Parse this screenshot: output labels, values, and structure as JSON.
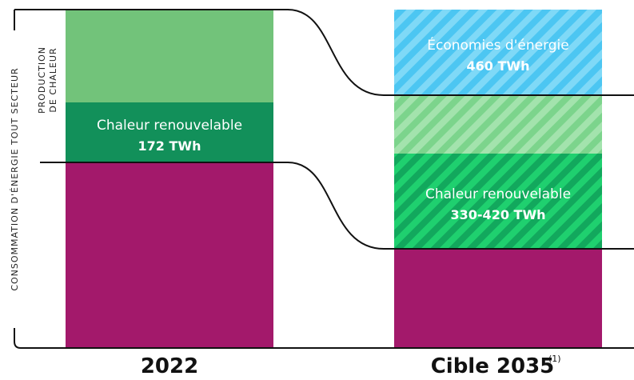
{
  "side_labels": {
    "production": [
      "PRODUCTION",
      "DE CHALEUR"
    ],
    "consumption": "CONSOMMATION D'ÉNERGIE TOUT SECTEUR"
  },
  "left_column": {
    "block_label": "Chaleur renouvelable",
    "block_value": "172 TWh",
    "year": "2022"
  },
  "right_column": {
    "savings_label": "Économies d'énergie",
    "savings_value": "460 TWh",
    "block_label": "Chaleur renouvelable",
    "block_value": "330-420 TWh",
    "year": "Cible 2035",
    "footnote": "(1)"
  }
}
